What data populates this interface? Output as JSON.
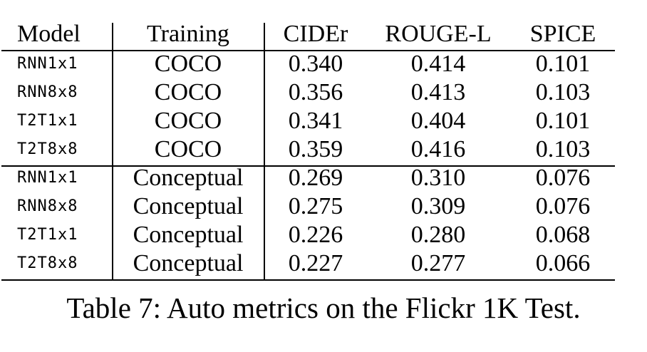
{
  "table": {
    "headers": [
      "Model",
      "Training",
      "CIDEr",
      "ROUGE-L",
      "SPICE"
    ],
    "groups": [
      [
        [
          "RNN1x1",
          "COCO",
          "0.340",
          "0.414",
          "0.101"
        ],
        [
          "RNN8x8",
          "COCO",
          "0.356",
          "0.413",
          "0.103"
        ],
        [
          "T2T1x1",
          "COCO",
          "0.341",
          "0.404",
          "0.101"
        ],
        [
          "T2T8x8",
          "COCO",
          "0.359",
          "0.416",
          "0.103"
        ]
      ],
      [
        [
          "RNN1x1",
          "Conceptual",
          "0.269",
          "0.310",
          "0.076"
        ],
        [
          "RNN8x8",
          "Conceptual",
          "0.275",
          "0.309",
          "0.076"
        ],
        [
          "T2T1x1",
          "Conceptual",
          "0.226",
          "0.280",
          "0.068"
        ],
        [
          "T2T8x8",
          "Conceptual",
          "0.227",
          "0.277",
          "0.066"
        ]
      ]
    ]
  },
  "caption": "Table 7: Auto metrics on the Flickr 1K Test."
}
